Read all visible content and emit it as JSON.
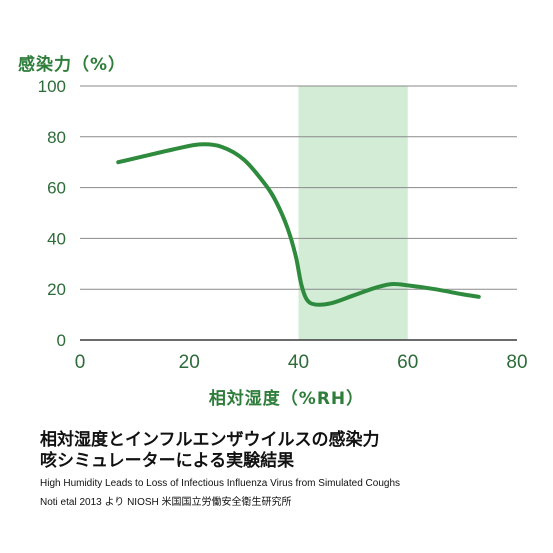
{
  "chart_data": {
    "type": "line",
    "ylabel": "感染力（%）",
    "xlabel": "相対湿度（%RH）",
    "xlim": [
      0,
      80
    ],
    "ylim": [
      0,
      100
    ],
    "x_ticks": [
      "0",
      "20",
      "40",
      "60",
      "80"
    ],
    "y_ticks": [
      "0",
      "20",
      "40",
      "60",
      "80",
      "100"
    ],
    "highlight_band": {
      "x_from": 40,
      "x_to": 60,
      "color": "#d3ecd6"
    },
    "grid": true,
    "series": [
      {
        "color": "#2e8b3d",
        "x": [
          7,
          12,
          17,
          22,
          26,
          30,
          34,
          36,
          38,
          39.5,
          40.5,
          41.5,
          43,
          46,
          50,
          54,
          57,
          60,
          65,
          70,
          73
        ],
        "y": [
          70,
          72.5,
          75,
          77,
          76,
          71,
          61,
          54,
          44,
          33,
          22,
          16,
          14,
          14.5,
          17.5,
          20.5,
          22,
          21.5,
          20,
          18,
          17
        ]
      }
    ]
  },
  "caption": {
    "title_line1": "相対湿度とインフルエンザウイルスの感染力",
    "title_line2": "咳シミュレーターによる実験結果",
    "source_line1": "High Humidity Leads to Loss of Infectious Influenza Virus from Simulated Coughs",
    "source_line2": "Noti etal 2013 より NIOSH 米国国立労働安全衛生研究所"
  }
}
